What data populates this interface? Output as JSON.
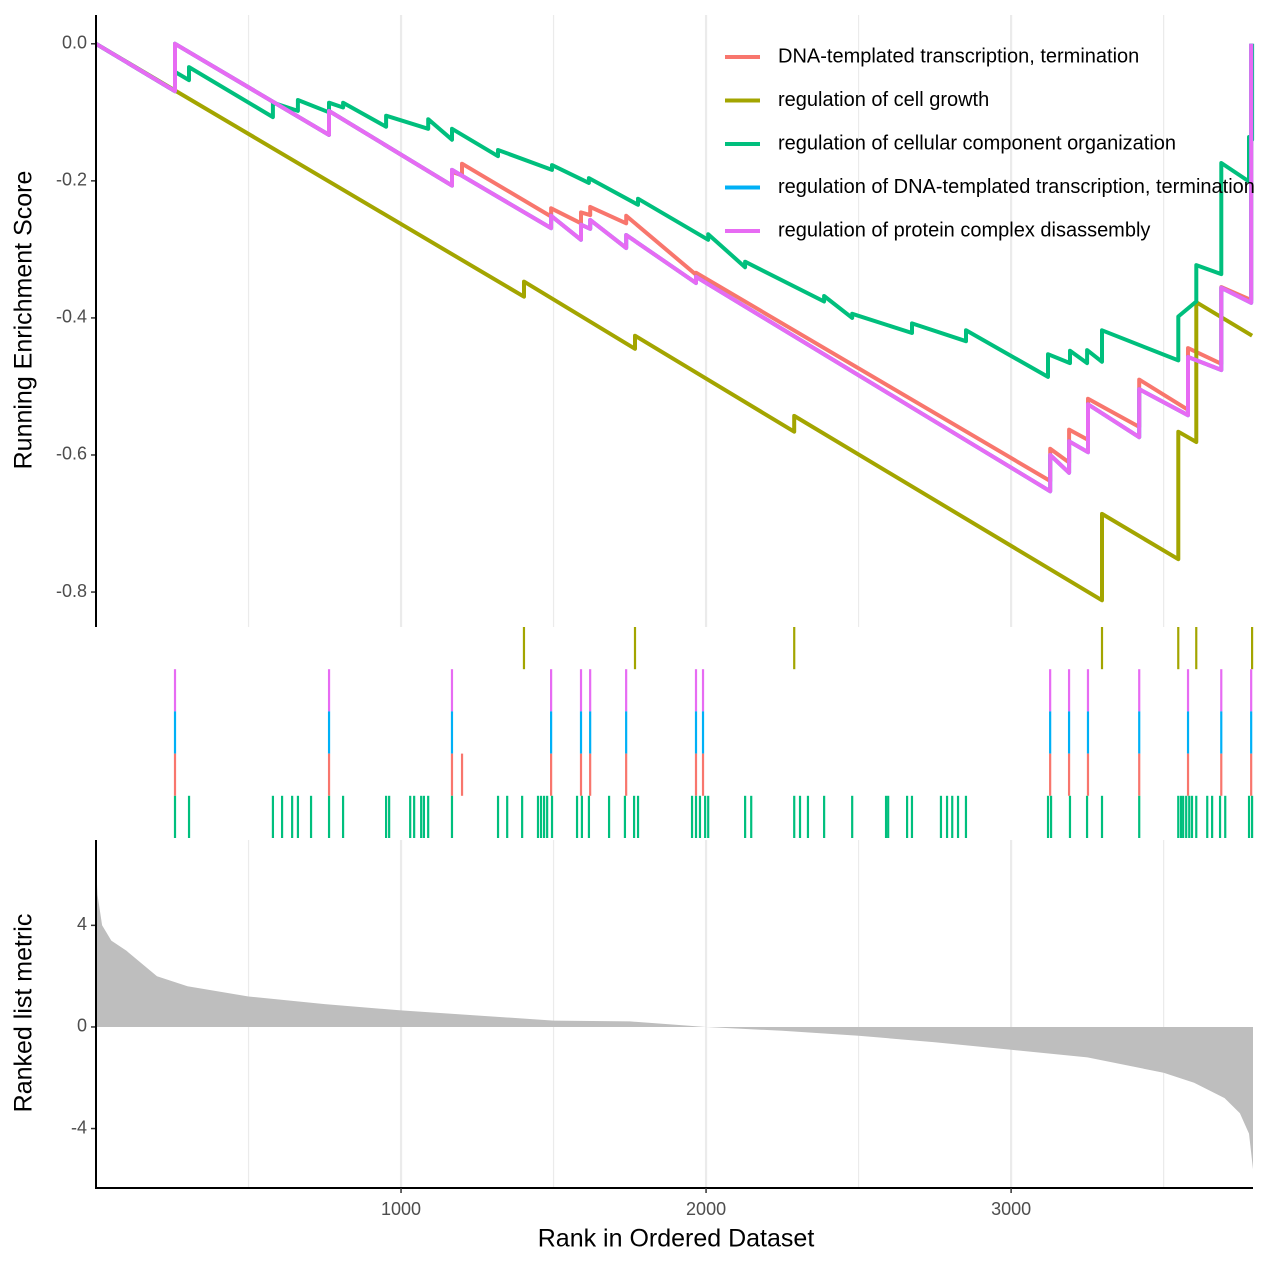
{
  "chart_data": [
    {
      "type": "line",
      "ylabel": "Running Enrichment Score",
      "xlim": [
        0,
        3793
      ],
      "ylim": [
        -0.851,
        0.042
      ],
      "yticks": [
        {
          "value": 0,
          "label": "0.0"
        },
        -0.2,
        -0.4,
        -0.6,
        -0.8
      ],
      "xgrid": [
        1000,
        2000,
        3000
      ],
      "xminorgrid": [
        500,
        1500,
        2500,
        3500
      ],
      "legend": "top-right",
      "series": [
        {
          "name": "DNA-templated transcription, termination",
          "color": "#F8766D",
          "x": [
            0,
            259,
            259,
            764,
            764,
            1167,
            1167,
            1200,
            1200,
            1492,
            1492,
            1590,
            1590,
            1620,
            1620,
            1738,
            1738,
            1967,
            1967,
            3128,
            3128,
            3190,
            3190,
            3252,
            3252,
            3420,
            3420,
            3580,
            3580,
            3689,
            3689,
            3787,
            3787
          ],
          "values": [
            0,
            -0.069,
            0,
            -0.133,
            -0.098,
            -0.207,
            -0.187,
            -0.192,
            -0.175,
            -0.252,
            -0.24,
            -0.262,
            -0.246,
            -0.25,
            -0.238,
            -0.262,
            -0.251,
            -0.337,
            -0.334,
            -0.638,
            -0.591,
            -0.611,
            -0.563,
            -0.578,
            -0.518,
            -0.559,
            -0.49,
            -0.534,
            -0.444,
            -0.467,
            -0.355,
            -0.374,
            0
          ]
        },
        {
          "name": "regulation of cell growth",
          "color": "#A3A500",
          "x": [
            0,
            1403,
            1403,
            1767,
            1767,
            2289,
            2289,
            3298,
            3298,
            3548,
            3548,
            3607,
            3607,
            3790
          ],
          "values": [
            0,
            -0.369,
            -0.347,
            -0.445,
            -0.426,
            -0.566,
            -0.543,
            -0.812,
            -0.686,
            -0.752,
            -0.566,
            -0.581,
            -0.377,
            -0.426
          ]
        },
        {
          "name": "regulation of cellular component organization",
          "color": "#00BF7D",
          "x": [
            0,
            259,
            259,
            305,
            305,
            580,
            580,
            662,
            662,
            764,
            764,
            810,
            810,
            951,
            951,
            1089,
            1089,
            1167,
            1167,
            1318,
            1318,
            1495,
            1495,
            1616,
            1616,
            1777,
            1777,
            2007,
            2007,
            2128,
            2128,
            2387,
            2387,
            2479,
            2479,
            2675,
            2675,
            2852,
            2852,
            3121,
            3121,
            3193,
            3193,
            3249,
            3249,
            3298,
            3298,
            3548,
            3548,
            3607,
            3607,
            3689,
            3689,
            3780,
            3780,
            3790,
            3790
          ],
          "values": [
            0,
            -0.069,
            -0.041,
            -0.053,
            -0.034,
            -0.107,
            -0.086,
            -0.098,
            -0.082,
            -0.1,
            -0.086,
            -0.093,
            -0.086,
            -0.121,
            -0.105,
            -0.124,
            -0.11,
            -0.14,
            -0.124,
            -0.164,
            -0.155,
            -0.184,
            -0.177,
            -0.203,
            -0.196,
            -0.235,
            -0.226,
            -0.286,
            -0.278,
            -0.326,
            -0.318,
            -0.376,
            -0.368,
            -0.4,
            -0.394,
            -0.422,
            -0.408,
            -0.434,
            -0.418,
            -0.486,
            -0.453,
            -0.466,
            -0.448,
            -0.466,
            -0.447,
            -0.464,
            -0.418,
            -0.462,
            -0.398,
            -0.376,
            -0.323,
            -0.336,
            -0.174,
            -0.201,
            -0.136,
            -0.14,
            0
          ]
        },
        {
          "name": "regulation of DNA-templated transcription, termination",
          "color": "#00B0F6",
          "x": [
            0,
            259,
            259,
            764,
            764,
            1167,
            1167,
            1492,
            1492,
            1590,
            1590,
            1620,
            1620,
            1738,
            1738,
            1967,
            1967,
            3128,
            3128,
            3190,
            3190,
            3252,
            3252,
            3420,
            3420,
            3580,
            3580,
            3689,
            3689,
            3787,
            3787
          ],
          "values": [
            0,
            -0.069,
            0,
            -0.133,
            -0.098,
            -0.207,
            -0.184,
            -0.269,
            -0.251,
            -0.286,
            -0.264,
            -0.27,
            -0.257,
            -0.298,
            -0.279,
            -0.349,
            -0.34,
            -0.653,
            -0.6,
            -0.626,
            -0.58,
            -0.596,
            -0.526,
            -0.574,
            -0.504,
            -0.542,
            -0.457,
            -0.476,
            -0.356,
            -0.378,
            0
          ]
        },
        {
          "name": "regulation of protein complex disassembly",
          "color": "#E76BF3",
          "x": [
            0,
            259,
            259,
            764,
            764,
            1167,
            1167,
            1492,
            1492,
            1590,
            1590,
            1620,
            1620,
            1738,
            1738,
            1967,
            1967,
            3128,
            3128,
            3190,
            3190,
            3252,
            3252,
            3420,
            3420,
            3580,
            3580,
            3689,
            3689,
            3787,
            3787
          ],
          "values": [
            0,
            -0.069,
            0,
            -0.133,
            -0.098,
            -0.207,
            -0.184,
            -0.269,
            -0.251,
            -0.286,
            -0.264,
            -0.27,
            -0.257,
            -0.298,
            -0.279,
            -0.349,
            -0.34,
            -0.653,
            -0.6,
            -0.626,
            -0.58,
            -0.596,
            -0.526,
            -0.574,
            -0.504,
            -0.542,
            -0.457,
            -0.476,
            -0.356,
            -0.378,
            0
          ]
        }
      ]
    },
    {
      "type": "rug",
      "xlim": [
        0,
        3793
      ],
      "series": [
        {
          "color": "#A3A500",
          "x": [
            1403,
            1767,
            2289,
            3298,
            3548,
            3607,
            3790
          ]
        },
        {
          "color": "#E76BF3",
          "x": [
            259,
            764,
            1167,
            1492,
            1590,
            1620,
            1738,
            1967,
            1990,
            3128,
            3190,
            3252,
            3420,
            3580,
            3689,
            3787
          ]
        },
        {
          "color": "#00B0F6",
          "x": [
            259,
            764,
            1167,
            1492,
            1590,
            1620,
            1738,
            1967,
            1990,
            3128,
            3190,
            3252,
            3420,
            3580,
            3689,
            3787
          ]
        },
        {
          "color": "#F8766D",
          "x": [
            259,
            764,
            1167,
            1200,
            1492,
            1590,
            1620,
            1738,
            1967,
            1990,
            3128,
            3190,
            3252,
            3420,
            3580,
            3689,
            3787
          ]
        },
        {
          "color": "#00BF7D",
          "x": [
            259,
            305,
            580,
            610,
            643,
            662,
            705,
            764,
            810,
            951,
            961,
            1030,
            1043,
            1066,
            1075,
            1089,
            1167,
            1318,
            1348,
            1397,
            1449,
            1459,
            1469,
            1479,
            1495,
            1577,
            1593,
            1616,
            1682,
            1734,
            1764,
            1777,
            1954,
            1967,
            1980,
            1997,
            2007,
            2128,
            2148,
            2289,
            2308,
            2334,
            2387,
            2479,
            2590,
            2597,
            2659,
            2675,
            2770,
            2790,
            2807,
            2826,
            2852,
            3121,
            3131,
            3193,
            3249,
            3298,
            3420,
            3548,
            3557,
            3564,
            3574,
            3584,
            3593,
            3607,
            3643,
            3659,
            3685,
            3702,
            3780,
            3790
          ]
        }
      ]
    },
    {
      "type": "area",
      "ylabel": "Ranked list metric",
      "xlabel": "Rank in Ordered Dataset",
      "color": "#BEBEBE",
      "xlim": [
        0,
        3793
      ],
      "ylim": [
        -6.34,
        7.36
      ],
      "yticks": [
        -4,
        0,
        4
      ],
      "xticks": [
        1000,
        2000,
        3000
      ],
      "xgrid": [
        1000,
        2000,
        3000
      ],
      "xminorgrid": [
        500,
        1500,
        2500,
        3500
      ],
      "x": [
        0,
        5,
        20,
        50,
        100,
        200,
        300,
        500,
        750,
        1000,
        1250,
        1500,
        1750,
        2000,
        2250,
        2500,
        2750,
        3000,
        3250,
        3500,
        3600,
        3700,
        3750,
        3780,
        3793
      ],
      "values": [
        6.5,
        5.2,
        4.0,
        3.4,
        3.0,
        2.0,
        1.6,
        1.2,
        0.9,
        0.65,
        0.45,
        0.25,
        0.22,
        0,
        -0.15,
        -0.35,
        -0.6,
        -0.9,
        -1.2,
        -1.8,
        -2.2,
        -2.8,
        -3.4,
        -4.2,
        -5.6
      ]
    }
  ]
}
